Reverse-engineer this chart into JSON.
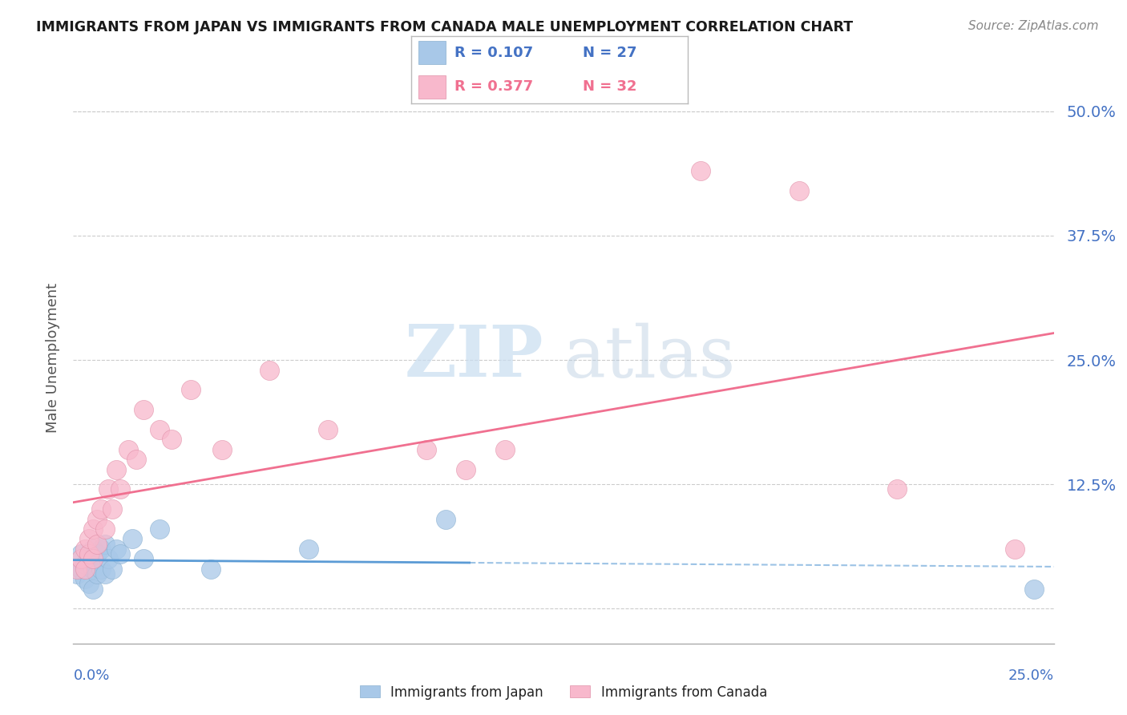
{
  "title": "IMMIGRANTS FROM JAPAN VS IMMIGRANTS FROM CANADA MALE UNEMPLOYMENT CORRELATION CHART",
  "source": "Source: ZipAtlas.com",
  "ylabel": "Male Unemployment",
  "xlim": [
    0.0,
    0.25
  ],
  "ylim": [
    -0.035,
    0.54
  ],
  "yticks": [
    0.0,
    0.125,
    0.25,
    0.375,
    0.5
  ],
  "ytick_labels": [
    "",
    "12.5%",
    "25.0%",
    "37.5%",
    "50.0%"
  ],
  "xtick_left_label": "0.0%",
  "xtick_right_label": "25.0%",
  "legend_japan_R": "0.107",
  "legend_japan_N": "27",
  "legend_canada_R": "0.377",
  "legend_canada_N": "32",
  "japan_scatter_color": "#a8c8e8",
  "canada_scatter_color": "#f8b8cc",
  "japan_line_color": "#5b9bd5",
  "canada_line_color": "#f07090",
  "grid_color": "#cccccc",
  "axis_label_color": "#4472c4",
  "japan_points_x": [
    0.001,
    0.002,
    0.002,
    0.003,
    0.003,
    0.004,
    0.004,
    0.005,
    0.005,
    0.005,
    0.006,
    0.006,
    0.007,
    0.007,
    0.008,
    0.008,
    0.009,
    0.01,
    0.011,
    0.012,
    0.015,
    0.018,
    0.022,
    0.035,
    0.06,
    0.095,
    0.245
  ],
  "japan_points_y": [
    0.035,
    0.04,
    0.055,
    0.03,
    0.045,
    0.025,
    0.05,
    0.04,
    0.06,
    0.02,
    0.035,
    0.055,
    0.04,
    0.06,
    0.035,
    0.065,
    0.05,
    0.04,
    0.06,
    0.055,
    0.07,
    0.05,
    0.08,
    0.04,
    0.06,
    0.09,
    0.02
  ],
  "canada_points_x": [
    0.001,
    0.002,
    0.003,
    0.003,
    0.004,
    0.004,
    0.005,
    0.005,
    0.006,
    0.006,
    0.007,
    0.008,
    0.009,
    0.01,
    0.011,
    0.012,
    0.014,
    0.016,
    0.018,
    0.022,
    0.025,
    0.03,
    0.038,
    0.05,
    0.065,
    0.09,
    0.1,
    0.11,
    0.16,
    0.185,
    0.21,
    0.24
  ],
  "canada_points_y": [
    0.04,
    0.05,
    0.04,
    0.06,
    0.055,
    0.07,
    0.05,
    0.08,
    0.09,
    0.065,
    0.1,
    0.08,
    0.12,
    0.1,
    0.14,
    0.12,
    0.16,
    0.15,
    0.2,
    0.18,
    0.17,
    0.22,
    0.16,
    0.24,
    0.18,
    0.16,
    0.14,
    0.16,
    0.44,
    0.42,
    0.12,
    0.06
  ]
}
